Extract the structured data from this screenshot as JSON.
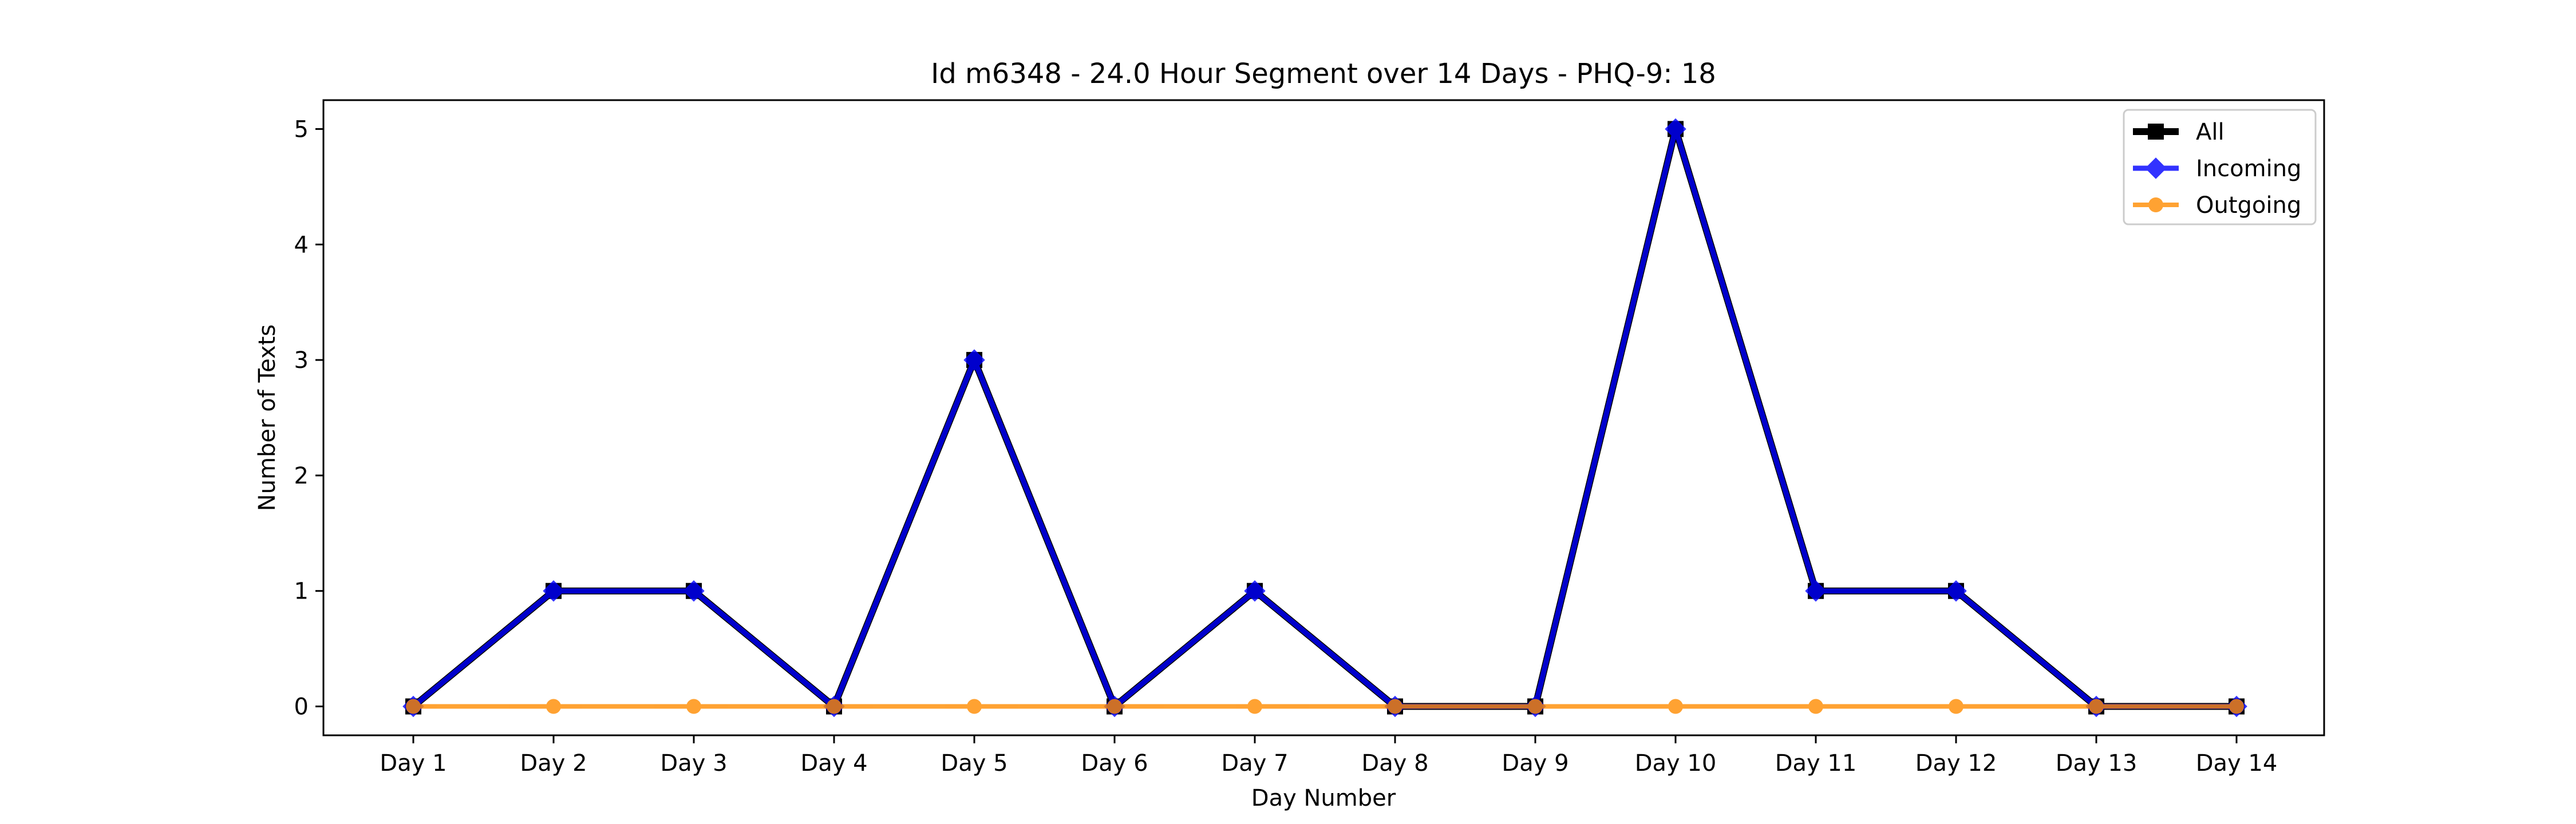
{
  "chart_data": {
    "type": "line",
    "title": "Id m6348 - 24.0 Hour Segment over 14 Days - PHQ-9: 18",
    "xlabel": "Day Number",
    "ylabel": "Number of Texts",
    "categories": [
      "Day 1",
      "Day 2",
      "Day 3",
      "Day 4",
      "Day 5",
      "Day 6",
      "Day 7",
      "Day 8",
      "Day 9",
      "Day 10",
      "Day 11",
      "Day 12",
      "Day 13",
      "Day 14"
    ],
    "y_ticks": [
      0,
      1,
      2,
      3,
      4,
      5
    ],
    "ylim": [
      -0.25,
      5.25
    ],
    "grid": false,
    "legend_position": "top-right",
    "series": [
      {
        "name": "All",
        "color": "#000000",
        "marker": "square",
        "values": [
          0,
          1,
          1,
          0,
          3,
          0,
          1,
          0,
          0,
          5,
          1,
          1,
          0,
          0
        ]
      },
      {
        "name": "Incoming",
        "color": "#0000ff",
        "marker": "diamond",
        "values": [
          0,
          1,
          1,
          0,
          3,
          0,
          1,
          0,
          0,
          5,
          1,
          1,
          0,
          0
        ]
      },
      {
        "name": "Outgoing",
        "color": "#ff8c00",
        "marker": "circle",
        "values": [
          0,
          0,
          0,
          0,
          0,
          0,
          0,
          0,
          0,
          0,
          0,
          0,
          0,
          0
        ]
      }
    ]
  }
}
